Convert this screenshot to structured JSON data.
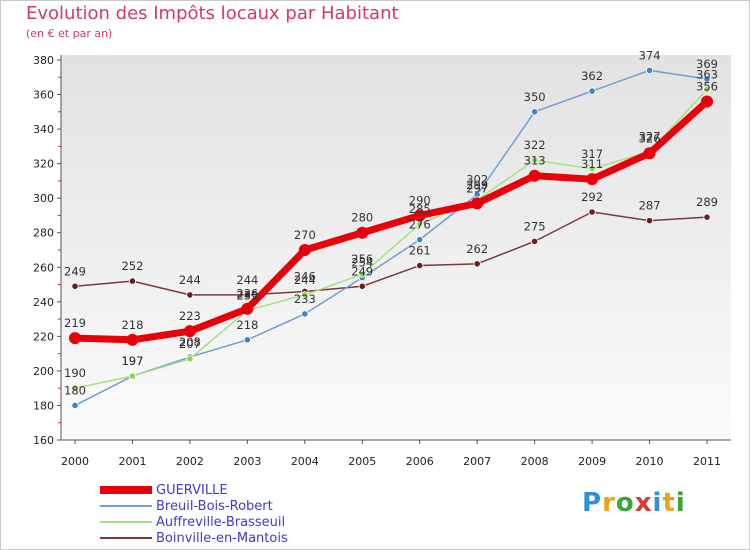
{
  "header": {
    "title": "Evolution des Impôts locaux par Habitant",
    "subtitle": "(en € et par an)"
  },
  "logo": {
    "text": "Proxiti",
    "colors": [
      "#2f8fd8",
      "#e8a317",
      "#3aa63a",
      "#d53a3a",
      "#2f8fd8",
      "#e8a317",
      "#3aa63a"
    ]
  },
  "chart_data": {
    "type": "line",
    "title": "Evolution des Impôts locaux par Habitant",
    "subtitle": "(en € et par an)",
    "xlabel": "",
    "ylabel": "",
    "ylim": [
      160,
      380
    ],
    "y_ticks": [
      160,
      180,
      200,
      220,
      240,
      260,
      280,
      300,
      320,
      340,
      360,
      380
    ],
    "grid": false,
    "legend_position": "bottom-left",
    "x": [
      2000,
      2001,
      2002,
      2003,
      2004,
      2005,
      2006,
      2007,
      2008,
      2009,
      2010,
      2011
    ],
    "x_tick_labels": [
      "2000",
      "2001",
      "2002",
      "2003",
      "2004",
      "2005",
      "2006",
      "2007",
      "2008",
      "2009",
      "2010",
      "2011"
    ],
    "series": [
      {
        "name": "GUERVILLE",
        "color": "#e8000b",
        "marker_color": "#e8000b",
        "values": [
          219,
          218,
          223,
          236,
          270,
          280,
          290,
          297,
          313,
          311,
          326,
          356
        ]
      },
      {
        "name": "Breuil-Bois-Robert",
        "color": "#6f9dd6",
        "marker_color": "#3a83cf",
        "values": [
          180,
          197,
          208,
          218,
          233,
          254,
          276,
          302,
          350,
          362,
          374,
          369
        ]
      },
      {
        "name": "Auffreville-Brasseuil",
        "color": "#a5e07e",
        "marker_color": "#8ad452",
        "values": [
          190,
          197,
          207,
          235,
          244,
          256,
          285,
          299,
          322,
          317,
          327,
          363
        ]
      },
      {
        "name": "Boinville-en-Mantois",
        "color": "#7a3a3a",
        "marker_color": "#6a1f1f",
        "values": [
          249,
          252,
          244,
          244,
          246,
          249,
          261,
          262,
          275,
          292,
          287,
          289
        ]
      }
    ]
  }
}
